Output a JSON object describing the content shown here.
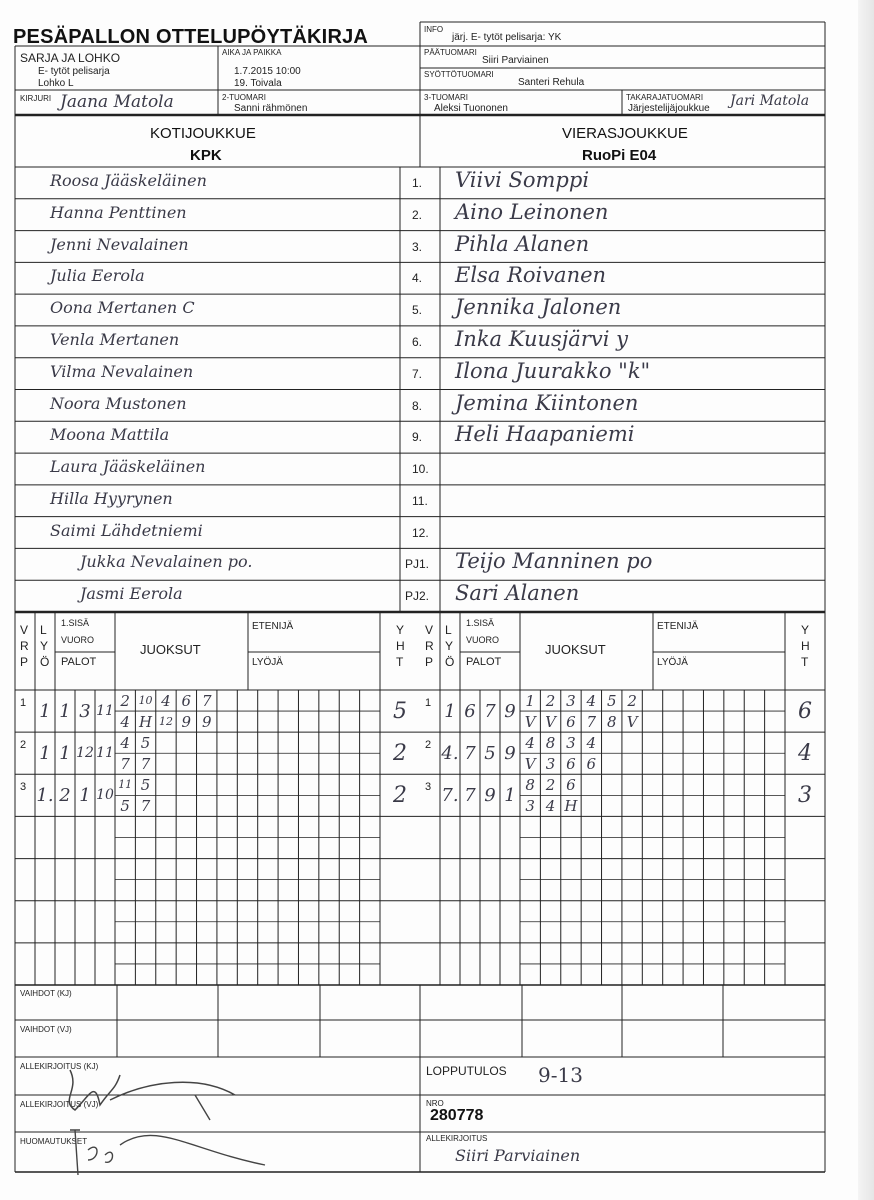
{
  "header": {
    "title": "PESÄPALLON OTTELUPÖYTÄKIRJA",
    "info_label": "INFO",
    "info_value": "järj. E- tytöt pelisarja: YK",
    "series_label": "SARJA JA LOHKO",
    "series_value": "E- tytöt pelisarja",
    "group_value": "Lohko L",
    "time_place_label": "AIKA JA PAIKKA",
    "datetime_value": "1.7.2015 10:00",
    "place_value": "19. Toivala",
    "head_umpire_label": "PÄÄTUOMARI",
    "head_umpire_value": "Siiri Parviainen",
    "pitch_umpire_label": "SYÖTTÖTUOMARI",
    "pitch_umpire_value": "Santeri Rehula",
    "scorer_label": "KIRJURI",
    "scorer_value": "Jaana Matola",
    "umpire2_label": "2-TUOMARI",
    "umpire2_value": "Sanni rähmönen",
    "umpire3_label": "3-TUOMARI",
    "umpire3_value": "Aleksi Tuononen",
    "back_umpire_label": "TAKARAJATUOMARI",
    "back_umpire_value": "Järjestelijäjoukkue",
    "back_umpire_hand": "Jari Matola"
  },
  "teams": {
    "home_label": "KOTIJOUKKUE",
    "home_name": "KPK",
    "away_label": "VIERASJOUKKUE",
    "away_name": "RuoPi E04"
  },
  "roster": {
    "numbers": [
      "1.",
      "2.",
      "3.",
      "4.",
      "5.",
      "6.",
      "7.",
      "8.",
      "9.",
      "10.",
      "11.",
      "12.",
      "PJ1.",
      "PJ2."
    ],
    "home": [
      "Roosa Jääskeläinen",
      "Hanna Penttinen",
      "Jenni Nevalainen",
      "Julia Eerola",
      "Oona Mertanen  C",
      "Venla Mertanen",
      "Vilma Nevalainen",
      "Noora Mustonen",
      "Moona Mattila",
      "Laura Jääskeläinen",
      "Hilla Hyyrynen",
      "Saimi Lähdetniemi",
      "Jukka Nevalainen  po.",
      "Jasmi Eerola"
    ],
    "away": [
      "Viivi Somppi",
      "Aino Leinonen",
      "Pihla Alanen",
      "Elsa Roivanen",
      "Jennika Jalonen",
      "Inka Kuusjärvi  y",
      "Ilona Juurakko  \"k\"",
      "Jemina Kiintonen",
      "Heli Haapaniemi",
      "",
      "",
      "",
      "Teijo Manninen  po",
      "Sari Alanen"
    ]
  },
  "scoring_header": {
    "vrp": [
      "V",
      "R",
      "P"
    ],
    "lyo": [
      "L",
      "Y",
      "Ö"
    ],
    "first_inning": "1.SISÄ",
    "vuoro": "VUORO",
    "palot": "PALOT",
    "juoksut": "JUOKSUT",
    "etenija": "ETENIJÄ",
    "lyoja": "LYÖJÄ",
    "yht": [
      "Y",
      "H",
      "T"
    ]
  },
  "scoring": {
    "home": [
      {
        "vrp": "1",
        "lyo": "1",
        "palot": [
          "1",
          "3",
          "11"
        ],
        "top": [
          "2",
          "10",
          "4",
          "6",
          "7"
        ],
        "bottom": [
          "4",
          "H",
          "12",
          "9",
          "9"
        ],
        "yht": "5"
      },
      {
        "vrp": "2",
        "lyo": "1",
        "palot": [
          "1",
          "12",
          "11"
        ],
        "top": [
          "4",
          "5"
        ],
        "bottom": [
          "7",
          "7"
        ],
        "yht": "2"
      },
      {
        "vrp": "3",
        "lyo": "1.",
        "palot": [
          "2",
          "1",
          "10"
        ],
        "top": [
          "11",
          "5"
        ],
        "bottom": [
          "5",
          "7"
        ],
        "yht": "2"
      }
    ],
    "away": [
      {
        "vrp": "1",
        "lyo": "1",
        "palot": [
          "6",
          "7",
          "9"
        ],
        "top": [
          "1",
          "2",
          "3",
          "4",
          "5",
          "2"
        ],
        "bottom": [
          "V",
          "V",
          "6",
          "7",
          "8",
          "V"
        ],
        "yht": "6"
      },
      {
        "vrp": "2",
        "lyo": "4.",
        "palot": [
          "7",
          "5",
          "9"
        ],
        "top": [
          "4",
          "8",
          "3",
          "4"
        ],
        "bottom": [
          "V",
          "3",
          "6",
          "6"
        ],
        "yht": "4"
      },
      {
        "vrp": "3",
        "lyo": "7.",
        "palot": [
          "7",
          "9",
          "1"
        ],
        "top": [
          "8",
          "2",
          "6"
        ],
        "bottom": [
          "3",
          "4",
          "H"
        ],
        "yht": "3"
      }
    ]
  },
  "footer": {
    "subs_home_label": "VAIHDOT (KJ)",
    "subs_away_label": "VAIHDOT (VJ)",
    "sign_home_label": "ALLEKIRJOITUS (KJ)",
    "sign_away_label": "ALLEKIRJOITUS (VJ)",
    "notes_label": "HUOMAUTUKSET",
    "result_label": "LOPPUTULOS",
    "result_value": "9-13",
    "number_label": "NRO",
    "number_value": "280778",
    "signature_label": "ALLEKIRJOITUS",
    "signature_value": "Siiri Parviainen"
  }
}
